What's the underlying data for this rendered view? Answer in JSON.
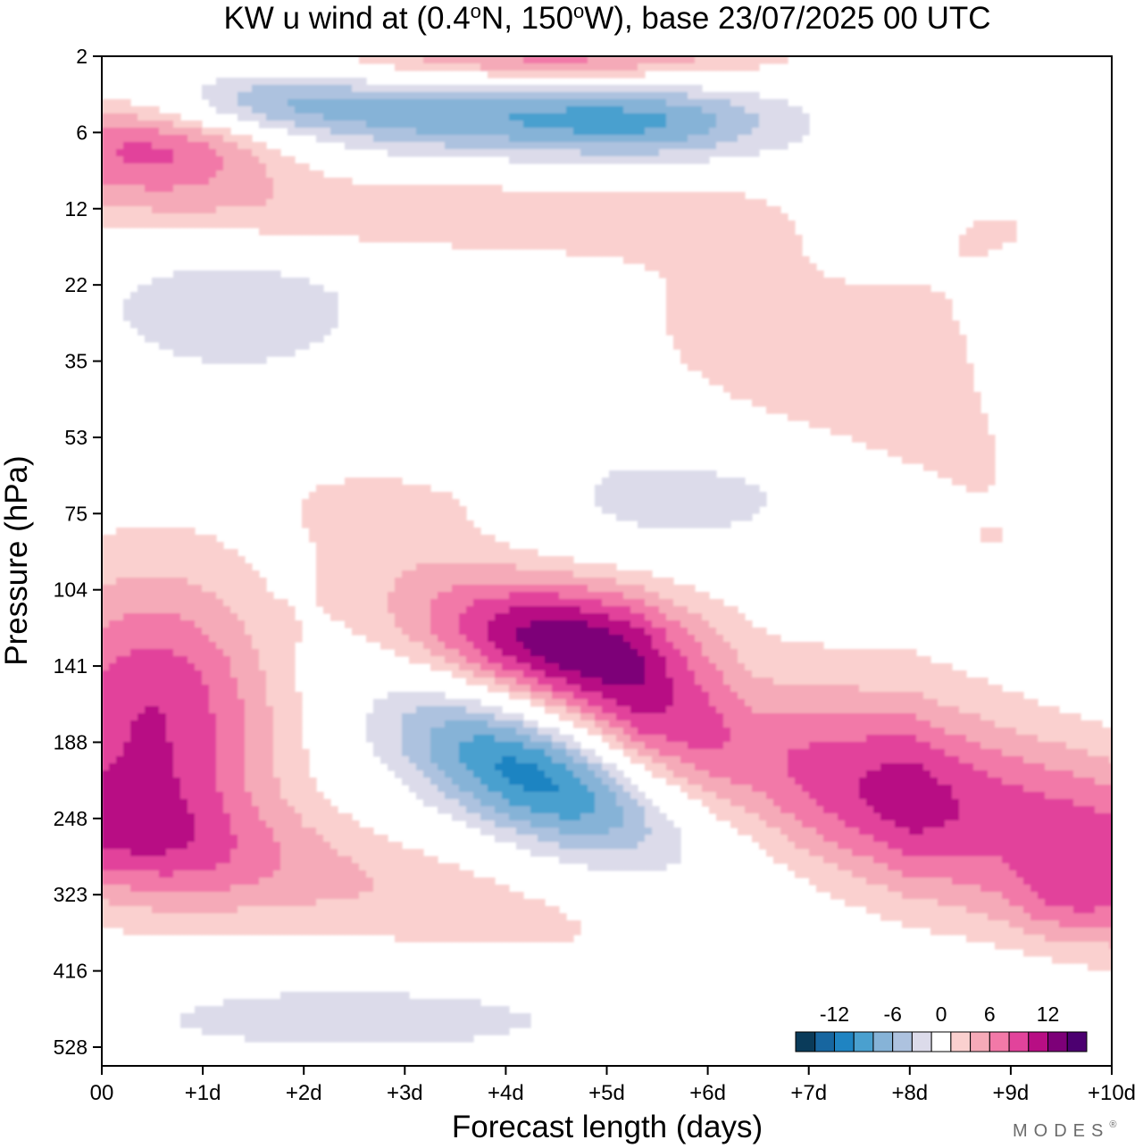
{
  "chart_data": {
    "type": "heatmap",
    "title": "KW u wind at (0.4°N, 150°W),  base 23/07/2025  00 UTC",
    "title_parts": {
      "prefix": "KW u wind at (0.4",
      "deg": "o",
      "mid1": "N, 150",
      "mid2": "W),  base 23/07/2025  00 UTC"
    },
    "xlabel": "Forecast length (days)",
    "ylabel": "Pressure (hPa)",
    "x_ticks": [
      "00",
      "+1d",
      "+2d",
      "+3d",
      "+4d",
      "+5d",
      "+6d",
      "+7d",
      "+8d",
      "+9d",
      "+10d"
    ],
    "y_ticks": [
      "2",
      "6",
      "12",
      "22",
      "35",
      "53",
      "75",
      "104",
      "141",
      "188",
      "248",
      "323",
      "416",
      "528"
    ],
    "xlim": [
      0,
      10
    ],
    "y_axis_direction": "pressure decreasing upward",
    "colorbar": {
      "labels": [
        "-12",
        "-6",
        "0",
        "6",
        "12"
      ],
      "levels": [
        -16,
        -14,
        -12,
        -10,
        -8,
        -6,
        -4,
        -2,
        2,
        4,
        6,
        8,
        10,
        12,
        14,
        16
      ],
      "colors": [
        "#0a3b5a",
        "#1766a0",
        "#1f84c2",
        "#4aa0cf",
        "#86b3d7",
        "#adc2df",
        "#dcdbea",
        "#ffffff",
        "#fad0cf",
        "#f5aab8",
        "#f279a8",
        "#e2439b",
        "#b80e84",
        "#7d0078",
        "#4c0070"
      ]
    },
    "field_features": [
      {
        "label": "westerly_max",
        "x_day": 4.6,
        "p_hPa": 125,
        "u": 15
      },
      {
        "label": "westerly_band_tilted",
        "x_day_range": [
          2.5,
          7.5
        ],
        "p_hPa_range": [
          80,
          230
        ],
        "u_range": [
          4,
          14
        ]
      },
      {
        "label": "easterly_min",
        "x_day": 4.2,
        "p_hPa": 210,
        "u": -11
      },
      {
        "label": "westerly_low_left",
        "x_day": 0.6,
        "p_hPa": 150,
        "u": 10
      },
      {
        "label": "westerly_lower_right",
        "x_day": 9.5,
        "p_hPa": 330,
        "u": 10
      },
      {
        "label": "easterly_upper",
        "x_day": 3.5,
        "p_hPa": 5,
        "u": -8
      },
      {
        "label": "westerly_upper_left",
        "x_day": 0.3,
        "p_hPa": 7,
        "u": 10
      }
    ]
  },
  "branding": {
    "logo_text": "MODES",
    "logo_mark": "®"
  }
}
